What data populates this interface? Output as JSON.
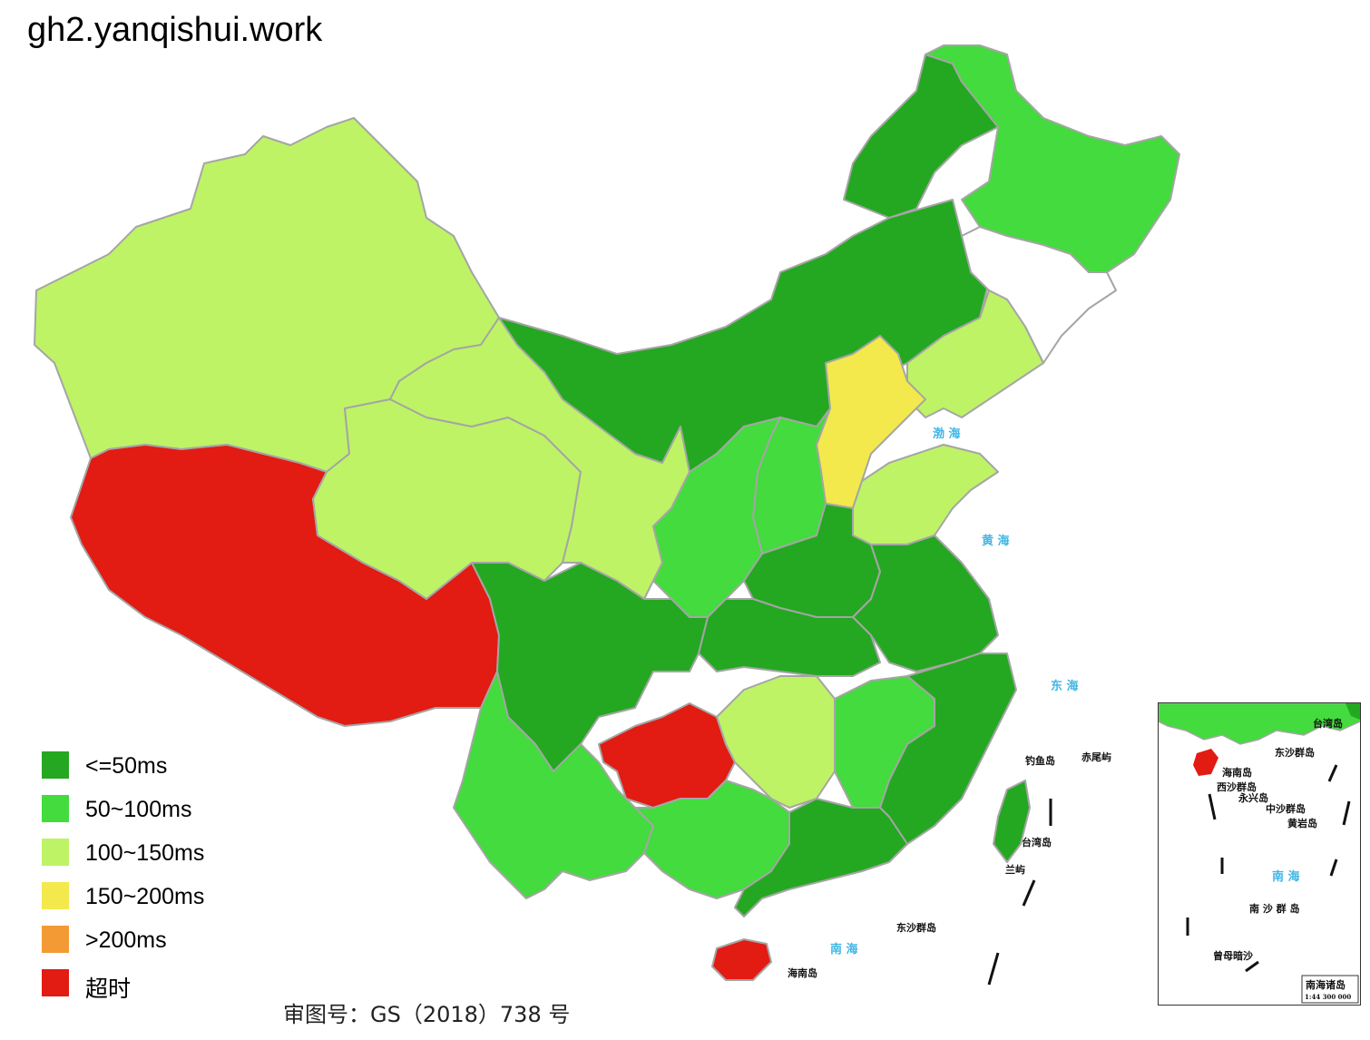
{
  "page": {
    "title": "gh2.yanqishui.work"
  },
  "colors": {
    "le50": "#24a821",
    "r50_100": "#43db3d",
    "r100_150": "#bef366",
    "r150_200": "#f3e94d",
    "gt200": "#f39a35",
    "timeout": "#e21b13",
    "nodata": "#ffffff",
    "sea": "#3fb6e6"
  },
  "legend": [
    {
      "label": "<=50ms",
      "color": "#24a821"
    },
    {
      "label": "50~100ms",
      "color": "#43db3d"
    },
    {
      "label": "100~150ms",
      "color": "#bef366"
    },
    {
      "label": "150~200ms",
      "color": "#f3e94d"
    },
    {
      "label": ">200ms",
      "color": "#f39a35"
    },
    {
      "label": "超时",
      "color": "#e21b13"
    }
  ],
  "approval_number": "审图号：GS（2018）738 号",
  "map_labels": {
    "bohai": "渤 海",
    "huanghai": "黄 海",
    "donghai": "东 海",
    "nanhai": "南 海",
    "diaoyu": "钓鱼岛",
    "chiwei": "赤尾屿",
    "taiwan": "台湾岛",
    "lanyu": "兰屿",
    "dongsha": "东沙群岛",
    "hainan": "海南岛"
  },
  "inset": {
    "taiwan": "台湾岛",
    "dongsha": "东沙群岛",
    "hainan": "海南岛",
    "xisha": "西沙群岛",
    "yongxing": "永兴岛",
    "zhongsha": "中沙群岛",
    "huangyan": "黄岩岛",
    "nansha": "南 沙 群 岛",
    "nanhai": "南 海",
    "zengmu": "曾母暗沙",
    "caption": "南海诸岛",
    "scale": "1:44 300 000"
  }
}
